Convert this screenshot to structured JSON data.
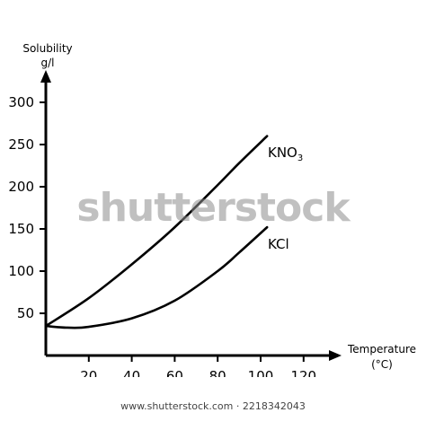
{
  "chart_data": {
    "type": "line",
    "ylabel_line1": "Solubility",
    "ylabel_line2": "g/l",
    "xlabel_line1": "Temperature",
    "xlabel_line2": "(°C)",
    "x_ticks": [
      20,
      40,
      60,
      80,
      100,
      120
    ],
    "y_ticks": [
      50,
      100,
      150,
      200,
      250,
      300
    ],
    "xlim": [
      0,
      135
    ],
    "ylim": [
      0,
      320
    ],
    "series": [
      {
        "name_main": "KNO",
        "name_sub": "3",
        "x": [
          0,
          20,
          40,
          60,
          80,
          90,
          103
        ],
        "y": [
          35,
          68,
          108,
          152,
          202,
          228,
          260
        ]
      },
      {
        "name_main": "KCl",
        "name_sub": "",
        "x": [
          0,
          10,
          20,
          40,
          60,
          80,
          90,
          103
        ],
        "y": [
          35,
          33,
          34,
          44,
          65,
          100,
          122,
          152
        ]
      }
    ]
  },
  "watermark": "shutterstock",
  "footer": {
    "image_id": "www.shutterstock.com · 2218342043"
  }
}
